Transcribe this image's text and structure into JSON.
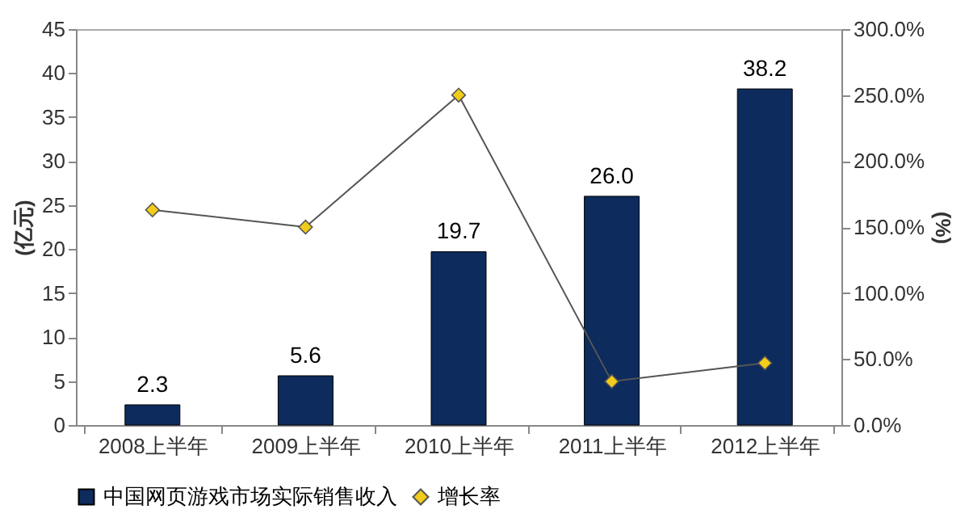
{
  "chart_data": {
    "type": "bar",
    "ylabel": "(亿元)",
    "y2label": "(%)",
    "categories": [
      "2008上半年",
      "2009上半年",
      "2010上半年",
      "2011上半年",
      "2012上半年"
    ],
    "series": [
      {
        "name": "中国网页游戏市场实际销售收入",
        "color": "#0d2b5c",
        "values": [
          2.3,
          5.6,
          19.7,
          26.0,
          38.2
        ],
        "value_labels": [
          "2.3",
          "5.6",
          "19.7",
          "26.0",
          "38.2"
        ]
      },
      {
        "name": "增长率",
        "type": "line",
        "axis": "y2",
        "color": "#f2cc1a",
        "marker": "diamond",
        "values": [
          163,
          150,
          250,
          33,
          47
        ]
      }
    ],
    "ylim": [
      0,
      45
    ],
    "yticks": [
      0,
      5,
      10,
      15,
      20,
      25,
      30,
      35,
      40,
      45
    ],
    "y2lim": [
      0,
      300
    ],
    "y2ticks": [
      {
        "value": 0,
        "label": "0.0%"
      },
      {
        "value": 50,
        "label": "50.0%"
      },
      {
        "value": 100,
        "label": "100.0%"
      },
      {
        "value": 150,
        "label": "150.0%"
      },
      {
        "value": 200,
        "label": "200.0%"
      },
      {
        "value": 250,
        "label": "250.0%"
      },
      {
        "value": 300,
        "label": "300.0%"
      }
    ],
    "grid": false,
    "legend": "bottom"
  }
}
